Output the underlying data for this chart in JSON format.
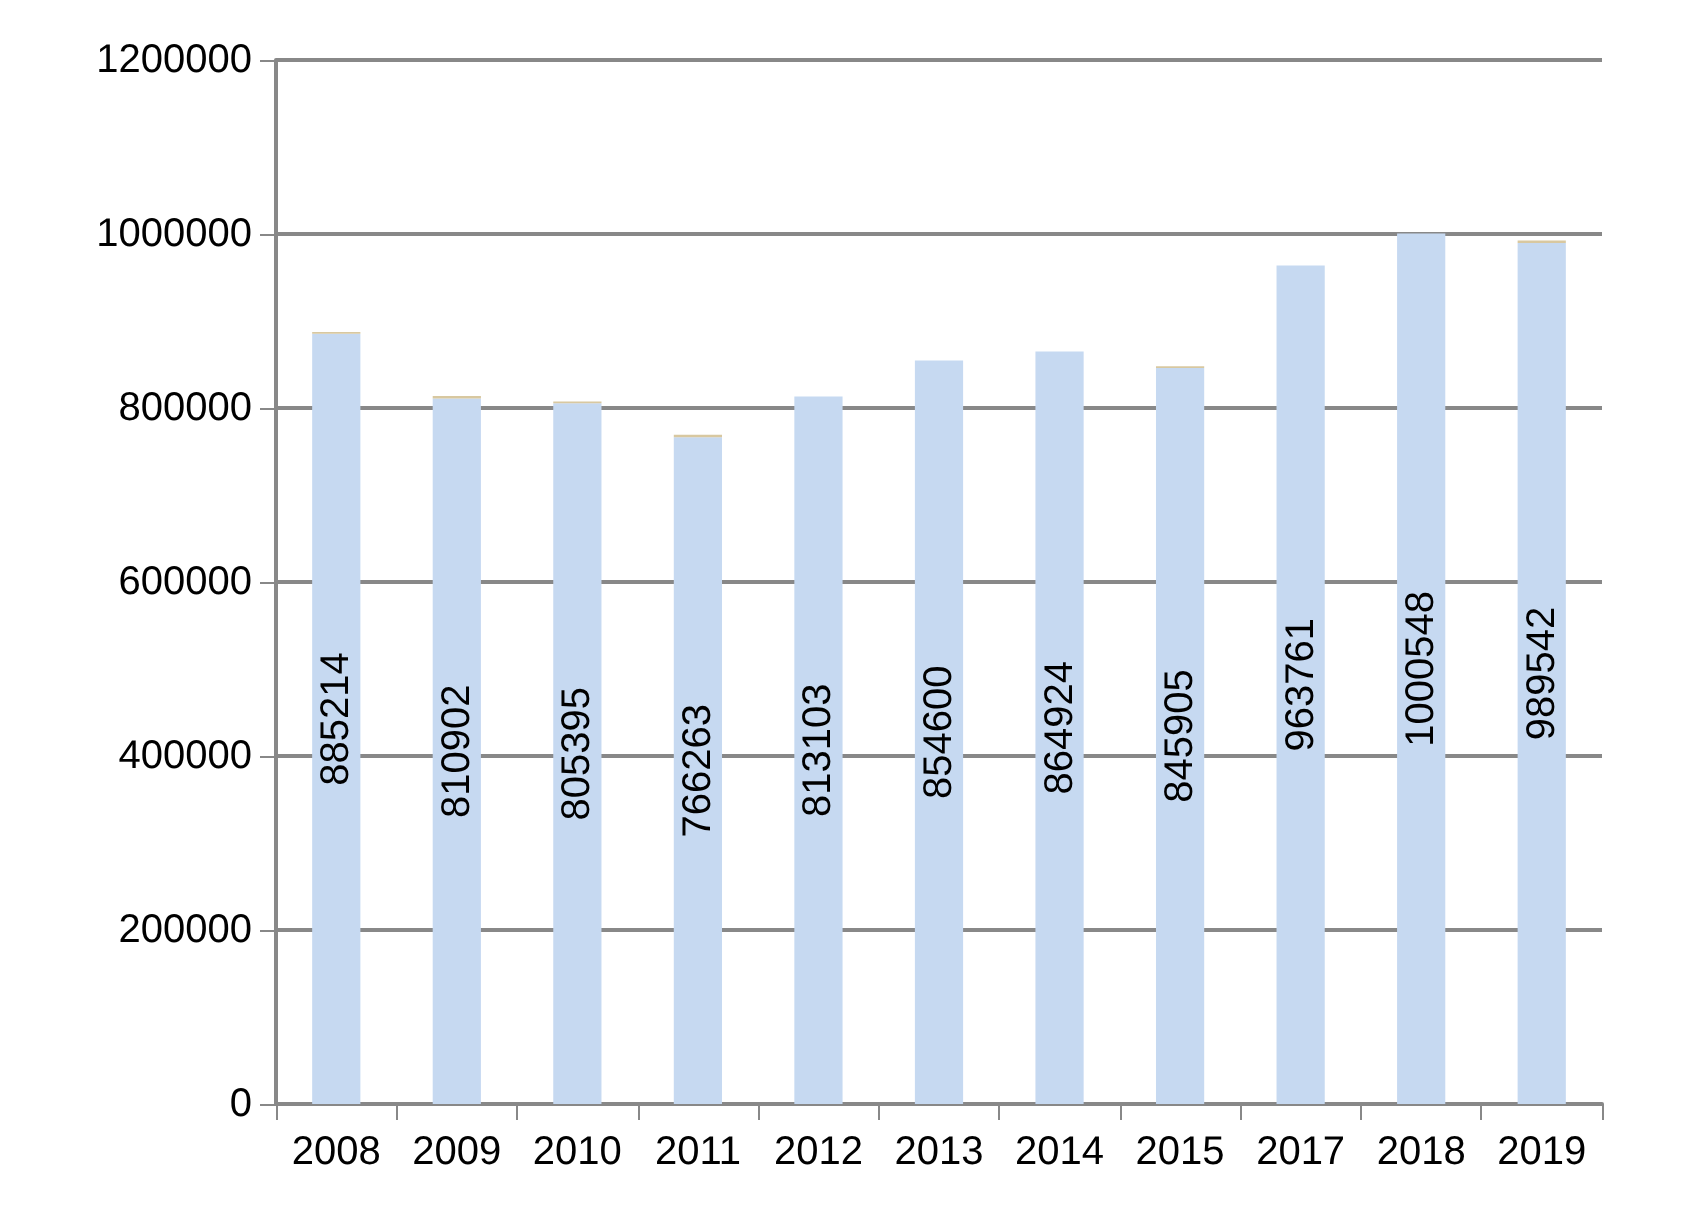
{
  "chart_data": {
    "type": "bar",
    "stacked": true,
    "categories": [
      "2008",
      "2009",
      "2010",
      "2011",
      "2012",
      "2013",
      "2014",
      "2015",
      "2017",
      "2018",
      "2019"
    ],
    "series": [
      {
        "color": "#c6d9f1",
        "values": [
          885214,
          810902,
          805395,
          766263,
          813103,
          854600,
          864924,
          845905,
          963761,
          1000548,
          989542
        ],
        "value_labels": [
          "885214",
          "810902",
          "805395",
          "766263",
          "813103",
          "854600",
          "864924",
          "845905",
          "963761",
          "1000548",
          "989542"
        ]
      },
      {
        "color": "#d8c8a0",
        "values": [
          2000,
          3000,
          2000,
          3000,
          null,
          null,
          null,
          2000,
          null,
          null,
          3000
        ]
      }
    ],
    "ylim": [
      0,
      1200000
    ],
    "yticks": [
      0,
      200000,
      400000,
      600000,
      800000,
      1000000,
      1200000
    ],
    "grid": "y"
  }
}
